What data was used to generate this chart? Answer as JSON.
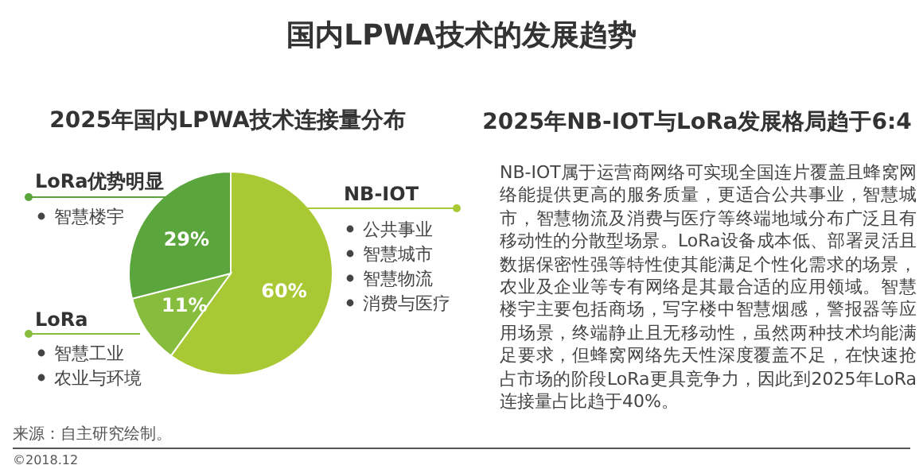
{
  "chart_data": [
    {
      "type": "pie",
      "title": "2025年国内LPWA技术连接量分布",
      "categories": [
        "NB-IOT",
        "LoRa",
        "LoRa优势明显"
      ],
      "values": [
        60,
        11,
        29
      ],
      "colors": [
        "#a8c934",
        "#87bd3d",
        "#5ba53d"
      ],
      "value_labels": [
        "60%",
        "11%",
        "29%"
      ],
      "annotations": [
        "国内LPWA技术的发展趋势",
        "来源：自主研究绘制。",
        "©2018.12",
        {
          "text": "公共事业",
          "x": "NB-IOT"
        },
        {
          "text": "智慧城市",
          "x": "NB-IOT"
        },
        {
          "text": "智慧物流",
          "x": "NB-IOT"
        },
        {
          "text": "消费与医疗",
          "x": "NB-IOT"
        },
        {
          "text": "智慧工业",
          "x": "LoRa"
        },
        {
          "text": "农业与环境",
          "x": "LoRa"
        },
        {
          "text": "智慧楼宇",
          "x": "LoRa优势明显"
        }
      ]
    },
    {
      "type": "other",
      "title": "2025年NB-IOT与LoRa发展格局趋于6:4",
      "annotations": [
        "NB-IOT属于运营商网络可实现全国连片覆盖且蜂窝网络能提供更高的服务质量，更适合公共事业，智慧城市，智慧物流及消费与医疗等终端地域分布广泛且有移动性的分散型场景。LoRa设备成本低、部署灵活且数据保密性强等特性使其能满足个性化需求的场景，农业及企业等专有网络是其最合适的应用领域。智慧楼宇主要包括商场，写字楼中智慧烟感，警报器等应用场景，终端静止且无移动性，虽然两种技术均能满足要求，但蜂窝网络先天性深度覆盖不足，在快速抢占市场的阶段LoRa更具竞争力，因此到2025年LoRa连接量占比趋于40%。"
      ]
    }
  ]
}
